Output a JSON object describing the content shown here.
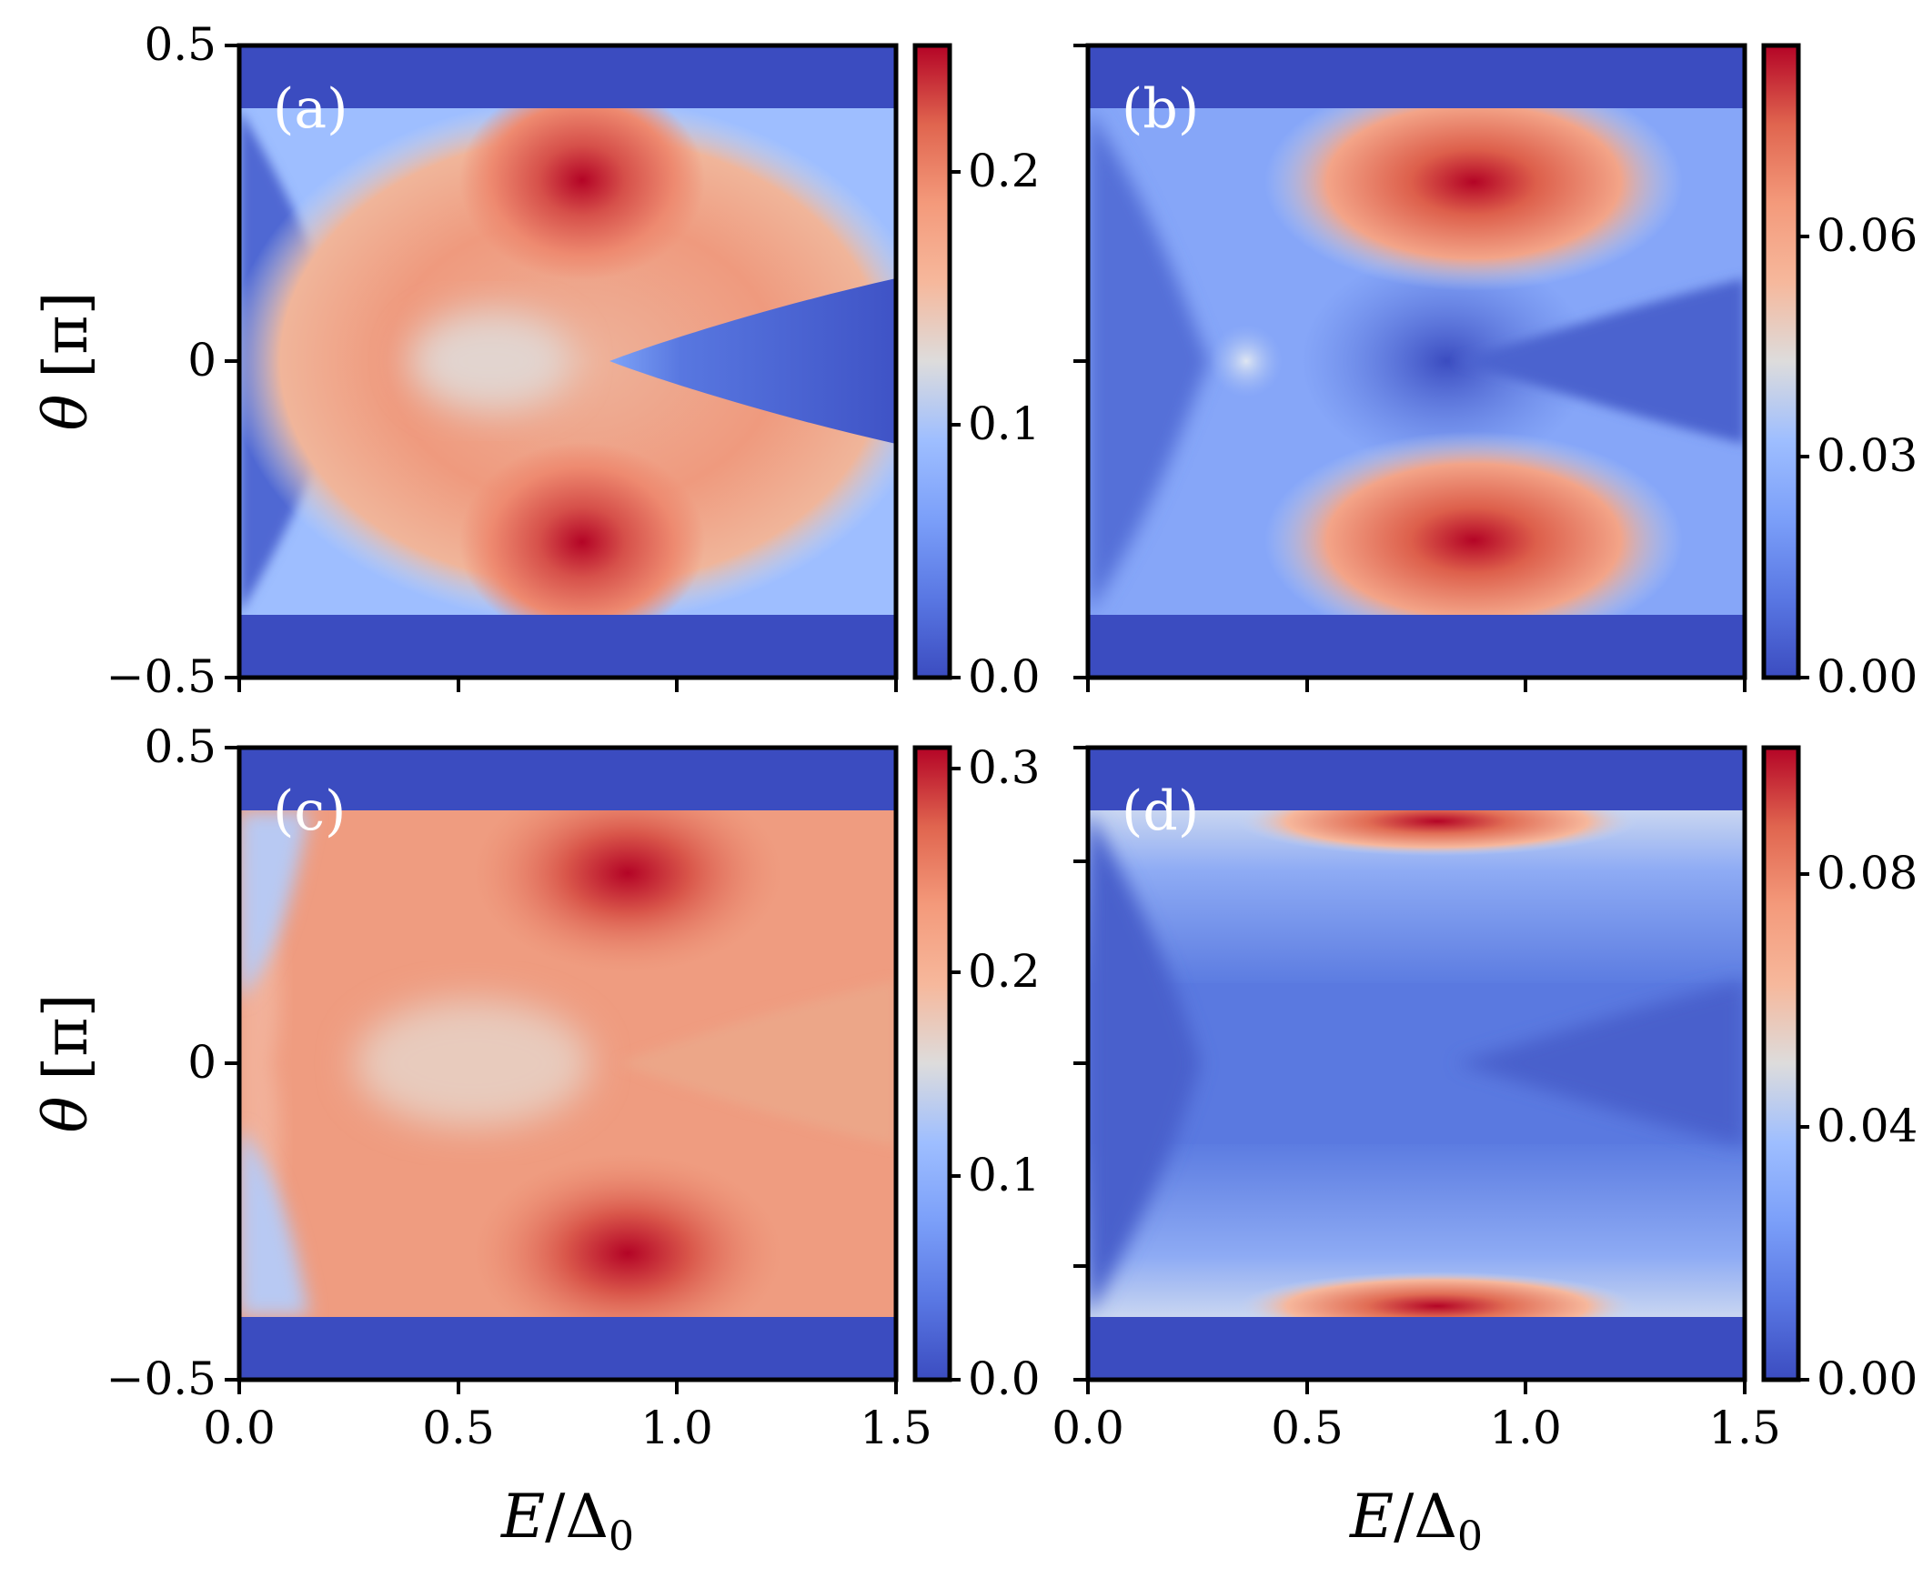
{
  "chart_data": [
    {
      "type": "heatmap",
      "panel": "(a)",
      "xlabel": "E/Δ0",
      "ylabel": "θ [π]",
      "xlim": [
        0.0,
        1.5
      ],
      "ylim": [
        -0.5,
        0.5
      ],
      "xticks": [
        "0.0",
        "0.5",
        "1.0",
        "1.5"
      ],
      "yticks": [
        "−0.5",
        "0",
        "0.5"
      ],
      "x_ticklabels_shown": false,
      "y_ticklabels_shown": true,
      "colorbar": {
        "range": [
          0.0,
          0.25
        ],
        "ticks": [
          "0.0",
          "0.1",
          "0.2"
        ],
        "colormap": "coolwarm"
      },
      "features": [
        {
          "kind": "band",
          "ymin": 0.4,
          "ymax": 0.5,
          "value": 0.0
        },
        {
          "kind": "band",
          "ymin": -0.5,
          "ymax": -0.4,
          "value": 0.0
        },
        {
          "kind": "peak",
          "x": 0.8,
          "y": 0.28,
          "value": 0.25
        },
        {
          "kind": "peak",
          "x": 0.8,
          "y": -0.28,
          "value": 0.25
        },
        {
          "kind": "low-lobe",
          "x0": 0.85,
          "x1": 1.5,
          "halfwidth": 0.13,
          "value": 0.01
        }
      ]
    },
    {
      "type": "heatmap",
      "panel": "(b)",
      "xlabel": "E/Δ0",
      "ylabel": "",
      "xlim": [
        0.0,
        1.5
      ],
      "ylim": [
        -0.5,
        0.5
      ],
      "x_ticklabels_shown": false,
      "y_ticklabels_shown": false,
      "colorbar": {
        "range": [
          0.0,
          0.08
        ],
        "ticks": [
          "0.00",
          "0.03",
          "0.06"
        ],
        "colormap": "coolwarm"
      },
      "features": [
        {
          "kind": "band",
          "ymin": 0.4,
          "ymax": 0.5,
          "value": 0.0
        },
        {
          "kind": "band",
          "ymin": -0.5,
          "ymax": -0.4,
          "value": 0.0
        },
        {
          "kind": "peak",
          "x": 0.95,
          "y": 0.35,
          "value": 0.08
        },
        {
          "kind": "peak",
          "x": 0.95,
          "y": -0.35,
          "value": 0.08
        }
      ]
    },
    {
      "type": "heatmap",
      "panel": "(c)",
      "xlabel": "E/Δ0",
      "ylabel": "θ [π]",
      "xlim": [
        0.0,
        1.5
      ],
      "ylim": [
        -0.5,
        0.5
      ],
      "xticks": [
        "0.0",
        "0.5",
        "1.0",
        "1.5"
      ],
      "yticks": [
        "−0.5",
        "0",
        "0.5"
      ],
      "x_ticklabels_shown": true,
      "y_ticklabels_shown": true,
      "colorbar": {
        "range": [
          0.0,
          0.31
        ],
        "ticks": [
          "0.0",
          "0.1",
          "0.2",
          "0.3"
        ],
        "colormap": "coolwarm"
      },
      "features": [
        {
          "kind": "band",
          "ymin": 0.4,
          "ymax": 0.5,
          "value": 0.0
        },
        {
          "kind": "band",
          "ymin": -0.5,
          "ymax": -0.4,
          "value": 0.0
        },
        {
          "kind": "peak",
          "x": 0.88,
          "y": 0.32,
          "value": 0.31
        },
        {
          "kind": "peak",
          "x": 0.88,
          "y": -0.32,
          "value": 0.31
        }
      ]
    },
    {
      "type": "heatmap",
      "panel": "(d)",
      "xlabel": "E/Δ0",
      "ylabel": "",
      "xlim": [
        0.0,
        1.5
      ],
      "ylim": [
        -0.5,
        0.5
      ],
      "xticks": [
        "0.0",
        "0.5",
        "1.0",
        "1.5"
      ],
      "x_ticklabels_shown": true,
      "y_ticklabels_shown": false,
      "colorbar": {
        "range": [
          0.0,
          0.1
        ],
        "ticks": [
          "0.00",
          "0.04",
          "0.08"
        ],
        "colormap": "coolwarm"
      },
      "features": [
        {
          "kind": "band",
          "ymin": 0.4,
          "ymax": 0.5,
          "value": 0.0
        },
        {
          "kind": "band",
          "ymin": -0.5,
          "ymax": -0.4,
          "value": 0.0
        },
        {
          "kind": "peak",
          "x": 0.95,
          "y": 0.39,
          "value": 0.1
        },
        {
          "kind": "peak",
          "x": 0.95,
          "y": -0.39,
          "value": 0.1
        }
      ]
    }
  ],
  "labels": {
    "xlabel_var": "E",
    "xlabel_slash": "/",
    "xlabel_delta": "Δ",
    "xlabel_sub": "0",
    "ylabel_var": "θ",
    "ylabel_unit": "[π]"
  }
}
